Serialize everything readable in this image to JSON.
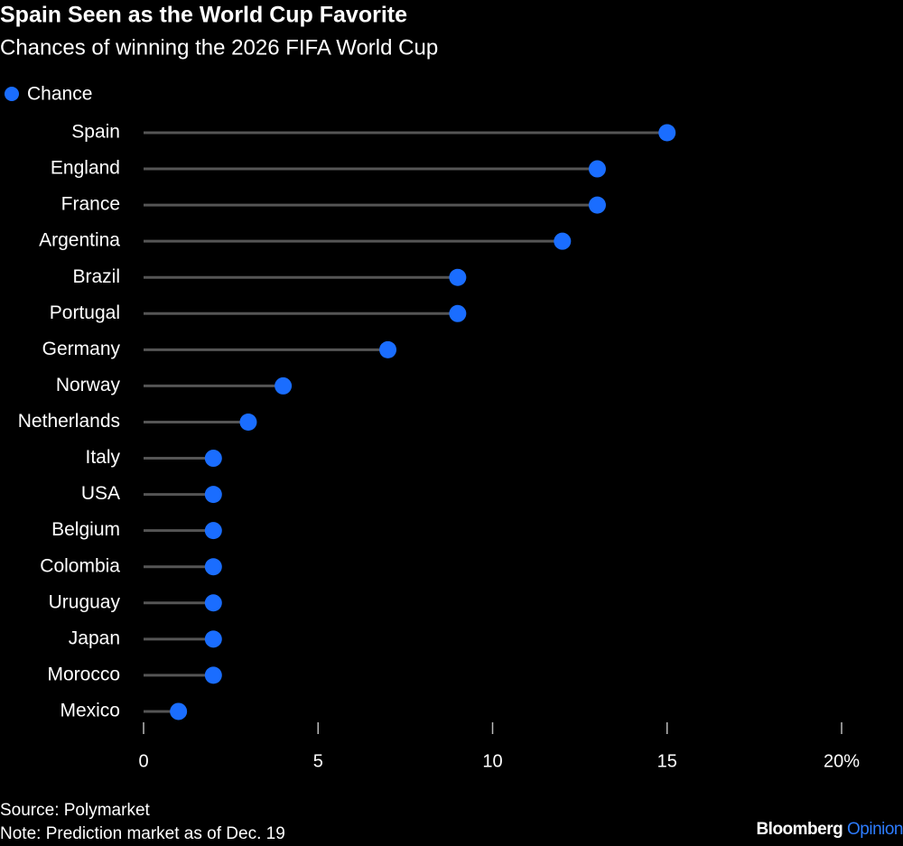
{
  "chart_data": {
    "type": "lollipop",
    "title": "Spain Seen as the World Cup Favorite",
    "subtitle": "Chances of winning the 2026 FIFA World Cup",
    "categories": [
      "Spain",
      "England",
      "France",
      "Argentina",
      "Brazil",
      "Portugal",
      "Germany",
      "Norway",
      "Netherlands",
      "Italy",
      "USA",
      "Belgium",
      "Colombia",
      "Uruguay",
      "Japan",
      "Morocco",
      "Mexico"
    ],
    "series": [
      {
        "name": "Chance",
        "color": "#1a6dff",
        "values": [
          15,
          13,
          13,
          12,
          9,
          9,
          7,
          4,
          3,
          2,
          2,
          2,
          2,
          2,
          2,
          2,
          1
        ]
      }
    ],
    "xlim": [
      0,
      20
    ],
    "xticks": [
      0,
      5,
      10,
      15,
      {
        "value": 20,
        "label": "20%"
      }
    ],
    "source": "Source: Polymarket",
    "note": "Note: Prediction market as of Dec. 19",
    "brand": "Bloomberg",
    "brand_accent": "Opinion"
  }
}
